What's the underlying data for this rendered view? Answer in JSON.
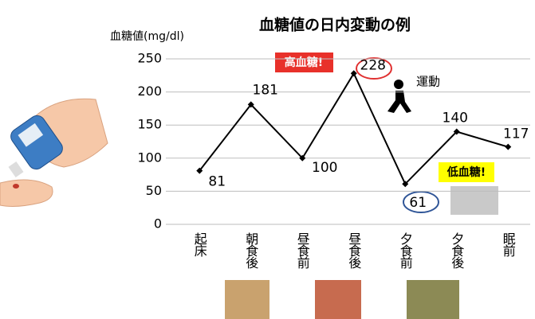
{
  "chart_data": {
    "type": "line",
    "title": "血糖値の日内変動の例",
    "y_label": "血糖値(mg/dl)",
    "categories": [
      "起床",
      "朝食後",
      "昼食前",
      "昼食後",
      "夕食前",
      "夕食後",
      "眠前"
    ],
    "values": [
      81,
      181,
      100,
      228,
      61,
      140,
      117
    ],
    "color": "#000000",
    "ylim": [
      0,
      250
    ],
    "yticks": [
      0,
      50,
      100,
      150,
      200,
      250
    ],
    "grid": true,
    "annotations": [
      "高血糖!",
      "低血糖!",
      "運動"
    ]
  }
}
